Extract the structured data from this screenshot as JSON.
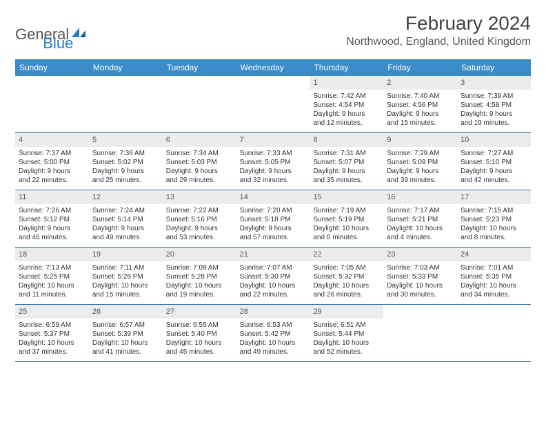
{
  "logo": {
    "word1": "General",
    "word2": "Blue"
  },
  "title": "February 2024",
  "location": "Northwood, England, United Kingdom",
  "colors": {
    "header_bg": "#3b8bc8",
    "header_text": "#ffffff",
    "daynum_bg": "#ececec",
    "week_divider": "#2c6fa3",
    "body_text": "#333333",
    "title_text": "#444444",
    "location_text": "#555555",
    "logo_gray": "#555555",
    "logo_blue": "#2b7bbd",
    "page_bg": "#ffffff"
  },
  "typography": {
    "title_fontsize": 28,
    "location_fontsize": 16,
    "weekday_fontsize": 12,
    "daynum_fontsize": 11,
    "body_fontsize": 10
  },
  "weekdays": [
    "Sunday",
    "Monday",
    "Tuesday",
    "Wednesday",
    "Thursday",
    "Friday",
    "Saturday"
  ],
  "weeks": [
    [
      {
        "empty": true
      },
      {
        "empty": true
      },
      {
        "empty": true
      },
      {
        "empty": true
      },
      {
        "n": "1",
        "sunrise": "Sunrise: 7:42 AM",
        "sunset": "Sunset: 4:54 PM",
        "d1": "Daylight: 9 hours",
        "d2": "and 12 minutes."
      },
      {
        "n": "2",
        "sunrise": "Sunrise: 7:40 AM",
        "sunset": "Sunset: 4:56 PM",
        "d1": "Daylight: 9 hours",
        "d2": "and 15 minutes."
      },
      {
        "n": "3",
        "sunrise": "Sunrise: 7:39 AM",
        "sunset": "Sunset: 4:58 PM",
        "d1": "Daylight: 9 hours",
        "d2": "and 19 minutes."
      }
    ],
    [
      {
        "n": "4",
        "sunrise": "Sunrise: 7:37 AM",
        "sunset": "Sunset: 5:00 PM",
        "d1": "Daylight: 9 hours",
        "d2": "and 22 minutes."
      },
      {
        "n": "5",
        "sunrise": "Sunrise: 7:36 AM",
        "sunset": "Sunset: 5:02 PM",
        "d1": "Daylight: 9 hours",
        "d2": "and 25 minutes."
      },
      {
        "n": "6",
        "sunrise": "Sunrise: 7:34 AM",
        "sunset": "Sunset: 5:03 PM",
        "d1": "Daylight: 9 hours",
        "d2": "and 29 minutes."
      },
      {
        "n": "7",
        "sunrise": "Sunrise: 7:33 AM",
        "sunset": "Sunset: 5:05 PM",
        "d1": "Daylight: 9 hours",
        "d2": "and 32 minutes."
      },
      {
        "n": "8",
        "sunrise": "Sunrise: 7:31 AM",
        "sunset": "Sunset: 5:07 PM",
        "d1": "Daylight: 9 hours",
        "d2": "and 35 minutes."
      },
      {
        "n": "9",
        "sunrise": "Sunrise: 7:29 AM",
        "sunset": "Sunset: 5:09 PM",
        "d1": "Daylight: 9 hours",
        "d2": "and 39 minutes."
      },
      {
        "n": "10",
        "sunrise": "Sunrise: 7:27 AM",
        "sunset": "Sunset: 5:10 PM",
        "d1": "Daylight: 9 hours",
        "d2": "and 42 minutes."
      }
    ],
    [
      {
        "n": "11",
        "sunrise": "Sunrise: 7:26 AM",
        "sunset": "Sunset: 5:12 PM",
        "d1": "Daylight: 9 hours",
        "d2": "and 46 minutes."
      },
      {
        "n": "12",
        "sunrise": "Sunrise: 7:24 AM",
        "sunset": "Sunset: 5:14 PM",
        "d1": "Daylight: 9 hours",
        "d2": "and 49 minutes."
      },
      {
        "n": "13",
        "sunrise": "Sunrise: 7:22 AM",
        "sunset": "Sunset: 5:16 PM",
        "d1": "Daylight: 9 hours",
        "d2": "and 53 minutes."
      },
      {
        "n": "14",
        "sunrise": "Sunrise: 7:20 AM",
        "sunset": "Sunset: 5:18 PM",
        "d1": "Daylight: 9 hours",
        "d2": "and 57 minutes."
      },
      {
        "n": "15",
        "sunrise": "Sunrise: 7:19 AM",
        "sunset": "Sunset: 5:19 PM",
        "d1": "Daylight: 10 hours",
        "d2": "and 0 minutes."
      },
      {
        "n": "16",
        "sunrise": "Sunrise: 7:17 AM",
        "sunset": "Sunset: 5:21 PM",
        "d1": "Daylight: 10 hours",
        "d2": "and 4 minutes."
      },
      {
        "n": "17",
        "sunrise": "Sunrise: 7:15 AM",
        "sunset": "Sunset: 5:23 PM",
        "d1": "Daylight: 10 hours",
        "d2": "and 8 minutes."
      }
    ],
    [
      {
        "n": "18",
        "sunrise": "Sunrise: 7:13 AM",
        "sunset": "Sunset: 5:25 PM",
        "d1": "Daylight: 10 hours",
        "d2": "and 11 minutes."
      },
      {
        "n": "19",
        "sunrise": "Sunrise: 7:11 AM",
        "sunset": "Sunset: 5:26 PM",
        "d1": "Daylight: 10 hours",
        "d2": "and 15 minutes."
      },
      {
        "n": "20",
        "sunrise": "Sunrise: 7:09 AM",
        "sunset": "Sunset: 5:28 PM",
        "d1": "Daylight: 10 hours",
        "d2": "and 19 minutes."
      },
      {
        "n": "21",
        "sunrise": "Sunrise: 7:07 AM",
        "sunset": "Sunset: 5:30 PM",
        "d1": "Daylight: 10 hours",
        "d2": "and 22 minutes."
      },
      {
        "n": "22",
        "sunrise": "Sunrise: 7:05 AM",
        "sunset": "Sunset: 5:32 PM",
        "d1": "Daylight: 10 hours",
        "d2": "and 26 minutes."
      },
      {
        "n": "23",
        "sunrise": "Sunrise: 7:03 AM",
        "sunset": "Sunset: 5:33 PM",
        "d1": "Daylight: 10 hours",
        "d2": "and 30 minutes."
      },
      {
        "n": "24",
        "sunrise": "Sunrise: 7:01 AM",
        "sunset": "Sunset: 5:35 PM",
        "d1": "Daylight: 10 hours",
        "d2": "and 34 minutes."
      }
    ],
    [
      {
        "n": "25",
        "sunrise": "Sunrise: 6:59 AM",
        "sunset": "Sunset: 5:37 PM",
        "d1": "Daylight: 10 hours",
        "d2": "and 37 minutes."
      },
      {
        "n": "26",
        "sunrise": "Sunrise: 6:57 AM",
        "sunset": "Sunset: 5:39 PM",
        "d1": "Daylight: 10 hours",
        "d2": "and 41 minutes."
      },
      {
        "n": "27",
        "sunrise": "Sunrise: 6:55 AM",
        "sunset": "Sunset: 5:40 PM",
        "d1": "Daylight: 10 hours",
        "d2": "and 45 minutes."
      },
      {
        "n": "28",
        "sunrise": "Sunrise: 6:53 AM",
        "sunset": "Sunset: 5:42 PM",
        "d1": "Daylight: 10 hours",
        "d2": "and 49 minutes."
      },
      {
        "n": "29",
        "sunrise": "Sunrise: 6:51 AM",
        "sunset": "Sunset: 5:44 PM",
        "d1": "Daylight: 10 hours",
        "d2": "and 52 minutes."
      },
      {
        "empty": true
      },
      {
        "empty": true
      }
    ]
  ]
}
